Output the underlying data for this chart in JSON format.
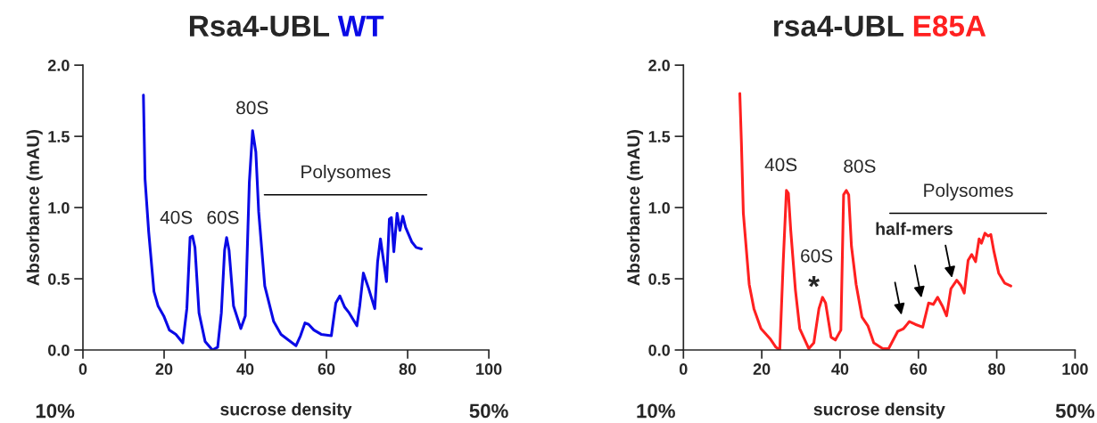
{
  "chart_data": [
    {
      "type": "line",
      "title": "Rsa4-UBL WT",
      "xlabel": "sucrose density",
      "ylabel": "Absorbance (mAU)",
      "xlim": [
        0,
        100
      ],
      "xticks": [
        0,
        20,
        40,
        60,
        80,
        100
      ],
      "ylim": [
        0,
        2
      ],
      "yticks": [
        {
          "value": 0,
          "label": "0.0"
        },
        {
          "value": 0.5,
          "label": "0.5"
        },
        {
          "value": 1.0,
          "label": "1.0"
        },
        {
          "value": 1.5,
          "label": "1.5"
        },
        {
          "value": 2.0,
          "label": "2.0"
        }
      ],
      "grid": false,
      "legend": false,
      "series": [
        {
          "color": "#0a0ae6",
          "x": [
            14.9,
            15.3,
            16.2,
            17.5,
            18.5,
            19.9,
            21.3,
            22.9,
            24.6,
            25.6,
            26.4,
            27.0,
            27.6,
            28.6,
            30.1,
            31.9,
            33.2,
            34.1,
            34.9,
            35.4,
            36.0,
            37.1,
            38.9,
            40.0,
            41.0,
            41.8,
            42.6,
            43.3,
            44.8,
            47.0,
            48.8,
            50.6,
            52.5,
            53.6,
            54.7,
            55.6,
            56.9,
            58.7,
            61.2,
            62.3,
            63.3,
            64.5,
            65.6,
            67.5,
            68.2,
            69.1,
            70.3,
            71.9,
            72.6,
            73.3,
            74.1,
            74.8,
            75.5,
            76.0,
            76.6,
            77.4,
            78.1,
            78.8,
            79.5,
            81.0,
            82.1,
            83.4
          ],
          "values": [
            1.79,
            1.2,
            0.83,
            0.41,
            0.31,
            0.24,
            0.14,
            0.11,
            0.05,
            0.29,
            0.79,
            0.8,
            0.72,
            0.26,
            0.06,
            0.0,
            0.02,
            0.26,
            0.7,
            0.79,
            0.7,
            0.31,
            0.15,
            0.24,
            1.18,
            1.54,
            1.39,
            0.97,
            0.45,
            0.2,
            0.11,
            0.07,
            0.03,
            0.1,
            0.19,
            0.18,
            0.14,
            0.11,
            0.1,
            0.33,
            0.38,
            0.3,
            0.26,
            0.17,
            0.31,
            0.54,
            0.44,
            0.29,
            0.62,
            0.78,
            0.62,
            0.48,
            0.92,
            0.93,
            0.69,
            0.96,
            0.84,
            0.94,
            0.86,
            0.76,
            0.72,
            0.71
          ]
        }
      ],
      "annotations": [
        "10%",
        "50%",
        "40S",
        "60S",
        "80S",
        "Polysomes"
      ]
    },
    {
      "type": "line",
      "title": "rsa4-UBL E85A",
      "xlabel": "sucrose density",
      "ylabel": "Absorbance (mAU)",
      "xlim": [
        0,
        100
      ],
      "xticks": [
        0,
        20,
        40,
        60,
        80,
        100
      ],
      "ylim": [
        0,
        2
      ],
      "yticks": [
        {
          "value": 0,
          "label": "0.0"
        },
        {
          "value": 0.5,
          "label": "0.5"
        },
        {
          "value": 1.0,
          "label": "1.0"
        },
        {
          "value": 1.5,
          "label": "1.5"
        },
        {
          "value": 2.0,
          "label": "2.0"
        }
      ],
      "grid": false,
      "legend": false,
      "series": [
        {
          "color": "#ff2020",
          "x": [
            14.4,
            14.8,
            15.3,
            16.8,
            18.0,
            19.8,
            22.1,
            23.6,
            24.6,
            25.5,
            26.3,
            26.8,
            27.4,
            28.6,
            29.7,
            32.0,
            33.3,
            34.6,
            35.5,
            36.3,
            37.7,
            38.8,
            40.2,
            40.9,
            41.6,
            42.2,
            42.9,
            44.1,
            45.6,
            47.1,
            48.6,
            50.9,
            52.4,
            54.7,
            56.2,
            57.7,
            59.2,
            61.1,
            62.6,
            63.8,
            64.9,
            66.1,
            67.2,
            68.3,
            69.8,
            70.9,
            71.7,
            72.7,
            73.6,
            74.6,
            75.5,
            76.1,
            77.0,
            77.8,
            78.5,
            79.3,
            80.5,
            82.0,
            83.6
          ],
          "values": [
            1.8,
            1.46,
            0.96,
            0.46,
            0.29,
            0.15,
            0.08,
            0.02,
            0.0,
            0.63,
            1.12,
            1.1,
            0.84,
            0.42,
            0.15,
            0.01,
            0.05,
            0.29,
            0.37,
            0.33,
            0.09,
            0.07,
            0.14,
            1.09,
            1.12,
            1.09,
            0.73,
            0.46,
            0.23,
            0.17,
            0.05,
            0.01,
            0.01,
            0.13,
            0.15,
            0.2,
            0.18,
            0.16,
            0.33,
            0.32,
            0.37,
            0.31,
            0.24,
            0.43,
            0.49,
            0.45,
            0.4,
            0.63,
            0.67,
            0.62,
            0.78,
            0.75,
            0.82,
            0.8,
            0.81,
            0.69,
            0.54,
            0.47,
            0.45
          ]
        }
      ],
      "annotations": [
        "10%",
        "50%",
        "40S",
        "80S",
        "60S",
        "*",
        "Polysomes",
        "half-mers"
      ]
    }
  ]
}
